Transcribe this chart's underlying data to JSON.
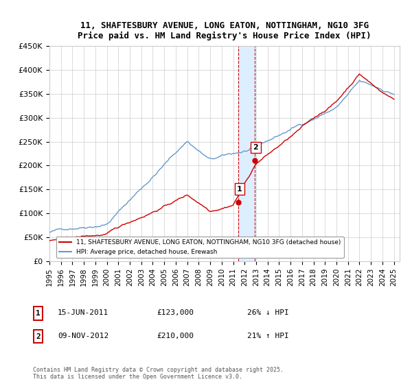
{
  "title1": "11, SHAFTESBURY AVENUE, LONG EATON, NOTTINGHAM, NG10 3FG",
  "title2": "Price paid vs. HM Land Registry's House Price Index (HPI)",
  "ylim": [
    0,
    450000
  ],
  "yticks": [
    0,
    50000,
    100000,
    150000,
    200000,
    250000,
    300000,
    350000,
    400000,
    450000
  ],
  "ytick_labels": [
    "£0",
    "£50K",
    "£100K",
    "£150K",
    "£200K",
    "£250K",
    "£300K",
    "£350K",
    "£400K",
    "£450K"
  ],
  "xlim_start": 1995.0,
  "xlim_end": 2025.5,
  "xtick_years": [
    1995,
    1996,
    1997,
    1998,
    1999,
    2000,
    2001,
    2002,
    2003,
    2004,
    2005,
    2006,
    2007,
    2008,
    2009,
    2010,
    2011,
    2012,
    2013,
    2014,
    2015,
    2016,
    2017,
    2018,
    2019,
    2020,
    2021,
    2022,
    2023,
    2024,
    2025
  ],
  "sale1_x": 2011.46,
  "sale1_y": 123000,
  "sale1_label": "1",
  "sale2_x": 2012.86,
  "sale2_y": 210000,
  "sale2_label": "2",
  "red_color": "#cc0000",
  "blue_color": "#6699cc",
  "shading_color": "#ddeeff",
  "grid_color": "#cccccc",
  "background_color": "#ffffff",
  "legend_entry1": "11, SHAFTESBURY AVENUE, LONG EATON, NOTTINGHAM, NG10 3FG (detached house)",
  "legend_entry2": "HPI: Average price, detached house, Erewash",
  "note1_num": "1",
  "note1_date": "15-JUN-2011",
  "note1_price": "£123,000",
  "note1_hpi": "26% ↓ HPI",
  "note2_num": "2",
  "note2_date": "09-NOV-2012",
  "note2_price": "£210,000",
  "note2_hpi": "21% ↑ HPI",
  "copyright": "Contains HM Land Registry data © Crown copyright and database right 2025.\nThis data is licensed under the Open Government Licence v3.0."
}
